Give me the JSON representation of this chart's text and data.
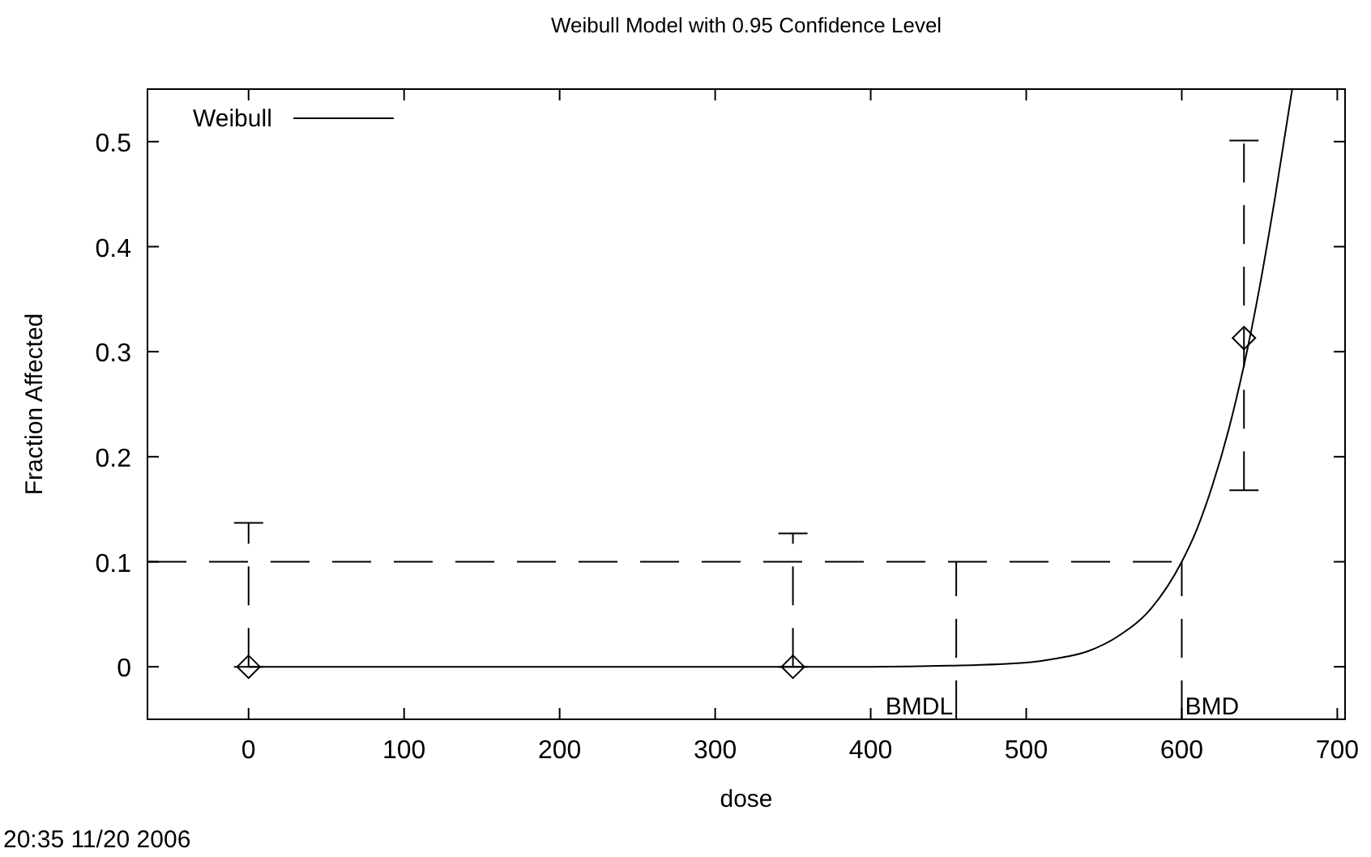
{
  "chart_data": {
    "type": "scatter",
    "title": "Weibull Model with 0.95 Confidence Level",
    "xlabel": "dose",
    "ylabel": "Fraction Affected",
    "annotations": [
      "20:35 11/20 2006"
    ],
    "series": [
      {
        "color": "#000000",
        "marker": "diamond",
        "x": [
          0,
          350,
          640
        ],
        "values": [
          0,
          0,
          0.313
        ],
        "errors": [
          [
            0,
            0.137
          ],
          [
            0,
            0.127
          ],
          [
            0.168,
            0.501
          ]
        ]
      },
      {
        "type": "line",
        "name": "Weibull",
        "color": "#000000",
        "marker": "none",
        "line_style": "solid",
        "x": [
          0,
          350,
          400,
          450,
          500,
          520,
          540,
          560,
          580,
          600,
          610,
          620,
          630,
          640,
          650,
          660,
          671
        ],
        "values": [
          0,
          0,
          0,
          0.001,
          0.004,
          0.008,
          0.015,
          0.03,
          0.055,
          0.1,
          0.132,
          0.174,
          0.225,
          0.287,
          0.361,
          0.447,
          0.55
        ]
      }
    ],
    "ref_lines": [
      {
        "axis": "y",
        "value": 0.1,
        "line_style": "dashed",
        "color": "#000000"
      },
      {
        "axis": "x",
        "value": 455,
        "label": "BMDL",
        "line_style": "dashed",
        "color": "#000000"
      },
      {
        "axis": "x",
        "value": 600,
        "label": "BMD",
        "line_style": "dashed",
        "color": "#000000"
      }
    ],
    "xlim": [
      -65,
      705
    ],
    "ylim": [
      -0.05,
      0.55
    ],
    "xticks": [
      0,
      100,
      200,
      300,
      400,
      500,
      600,
      700
    ],
    "yticks": [
      0,
      0.1,
      0.2,
      0.3,
      0.4,
      0.5
    ],
    "grid": false,
    "legend": "top left"
  }
}
